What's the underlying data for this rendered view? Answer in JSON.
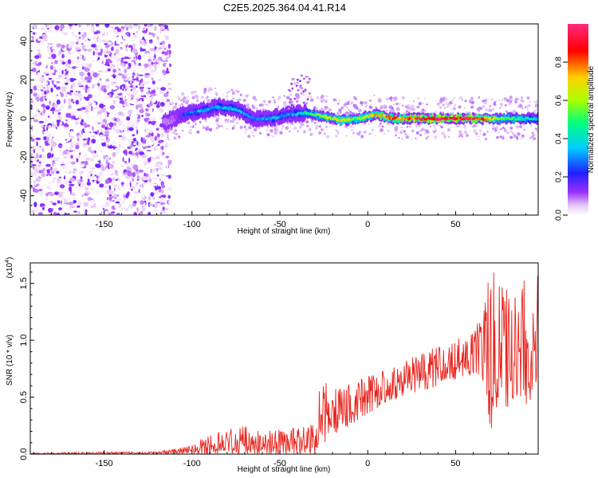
{
  "figure": {
    "title": "C2E5.2025.364.04.41.R14"
  },
  "chart_data": [
    {
      "type": "heatmap",
      "title": "C2E5.2025.364.04.41.R14",
      "xlabel": "Height of straight line (km)",
      "ylabel": "Frequency (Hz)",
      "xlim": [
        -192,
        97
      ],
      "ylim": [
        -50,
        49
      ],
      "xticks": [
        -150,
        -100,
        -50,
        0,
        50
      ],
      "yticks": [
        -40,
        -20,
        0,
        20,
        40
      ],
      "colorbar": {
        "label": "Normalized spectral amplitude",
        "range": [
          0,
          1
        ],
        "ticks": [
          "0.0",
          "0.2",
          "0.4",
          "0.6",
          "0.8"
        ],
        "tick_values": [
          0,
          0.2,
          0.4,
          0.6,
          0.8
        ],
        "colormap": [
          "#ffffff",
          "#e6c8f5",
          "#9b30ff",
          "#2020ff",
          "#00ccff",
          "#00ff80",
          "#aaff00",
          "#ffd000",
          "#ff0000",
          "#ff2a80"
        ]
      },
      "signal_trace": {
        "x": [
          -115,
          -105,
          -95,
          -85,
          -75,
          -65,
          -55,
          -45,
          -35,
          -25,
          -15,
          -5,
          5,
          15,
          25,
          35,
          45,
          55,
          65,
          75,
          85,
          95
        ],
        "freq": [
          -2,
          2,
          4,
          6,
          5,
          0,
          0,
          2,
          3,
          1,
          -1,
          0,
          2,
          0,
          0,
          0,
          0,
          0,
          0,
          0,
          0,
          0
        ],
        "amplitude": [
          0.15,
          0.25,
          0.35,
          0.35,
          0.4,
          0.3,
          0.35,
          0.3,
          0.45,
          0.6,
          0.7,
          0.6,
          0.75,
          0.85,
          0.9,
          0.95,
          0.95,
          0.95,
          0.9,
          0.6,
          0.5,
          0.4
        ]
      },
      "noise_region": {
        "x_from": -192,
        "x_to": -112
      }
    },
    {
      "type": "line",
      "xlabel": "Height of straight line (km)",
      "ylabel": "SNR (10 * v/v)",
      "y_multiplier_label": "(x10",
      "y_multiplier_exp": "4",
      "xlim": [
        -192,
        97
      ],
      "ylim": [
        0,
        1.68
      ],
      "xticks": [
        -150,
        -100,
        -50,
        0,
        50
      ],
      "yticks": [
        "0.0",
        "0.5",
        "1.0",
        "1.5"
      ],
      "ytick_values": [
        0,
        0.5,
        1.0,
        1.5
      ],
      "series": [
        {
          "name": "SNR",
          "color": "#e8231c",
          "envelope": {
            "x": [
              -192,
              -150,
              -120,
              -100,
              -90,
              -80,
              -70,
              -60,
              -50,
              -40,
              -30,
              -27,
              -20,
              -10,
              0,
              10,
              20,
              30,
              40,
              50,
              60,
              65,
              70,
              75,
              80,
              85,
              90,
              97
            ],
            "max": [
              0.01,
              0.02,
              0.02,
              0.08,
              0.18,
              0.22,
              0.25,
              0.2,
              0.22,
              0.24,
              0.3,
              0.65,
              0.6,
              0.62,
              0.7,
              0.75,
              0.8,
              0.9,
              0.95,
              1.0,
              1.1,
              1.25,
              1.65,
              1.55,
              1.5,
              1.6,
              1.65,
              1.65
            ],
            "min": [
              0.0,
              0.0,
              0.0,
              0.0,
              0.0,
              0.0,
              0.0,
              0.0,
              0.0,
              0.0,
              0.0,
              0.05,
              0.15,
              0.25,
              0.35,
              0.45,
              0.5,
              0.55,
              0.6,
              0.65,
              0.7,
              0.7,
              0.2,
              0.45,
              0.4,
              0.5,
              0.4,
              0.6
            ]
          }
        }
      ]
    }
  ]
}
